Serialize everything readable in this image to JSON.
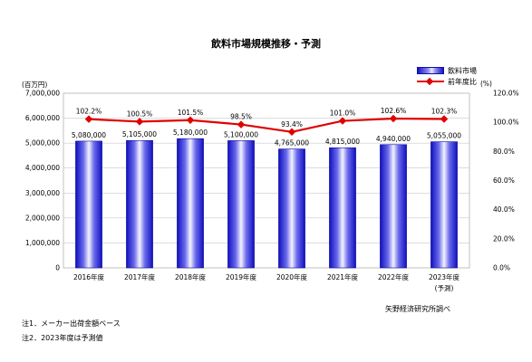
{
  "title": "飲料市場規模推移・予測",
  "unit_left": "(百万円)",
  "unit_right": "(%)",
  "source": "矢野経済研究所調べ",
  "notes": [
    "注1．メーカー出荷金額ベース",
    "注2．2023年度は予測値"
  ],
  "colors": {
    "bar": "#2a2ad8",
    "line": "#e00000"
  },
  "chart_data": {
    "type": "bar",
    "title": "飲料市場規模推移・予測",
    "categories": [
      "2016年度",
      "2017年度",
      "2018年度",
      "2019年度",
      "2020年度",
      "2021年度",
      "2022年度",
      "2023年度"
    ],
    "category_sublabels": [
      "",
      "",
      "",
      "",
      "",
      "",
      "",
      "(予測)"
    ],
    "series": [
      {
        "name": "飲料市場",
        "type": "bar",
        "axis": "left",
        "values": [
          5080000,
          5105000,
          5180000,
          5100000,
          4765000,
          4815000,
          4940000,
          5055000
        ],
        "labels": [
          "5,080,000",
          "5,105,000",
          "5,180,000",
          "5,100,000",
          "4,765,000",
          "4,815,000",
          "4,940,000",
          "5,055,000"
        ]
      },
      {
        "name": "前年度比",
        "type": "line",
        "axis": "right",
        "values": [
          102.2,
          100.5,
          101.5,
          98.5,
          93.4,
          101.0,
          102.6,
          102.3
        ],
        "labels": [
          "102.2%",
          "100.5%",
          "101.5%",
          "98.5%",
          "93.4%",
          "101.0%",
          "102.6%",
          "102.3%"
        ]
      }
    ],
    "y_left": {
      "label": "(百万円)",
      "ylim": [
        0,
        7000000
      ],
      "ticks": [
        "0",
        "1,000,000",
        "2,000,000",
        "3,000,000",
        "4,000,000",
        "5,000,000",
        "6,000,000",
        "7,000,000"
      ]
    },
    "y_right": {
      "label": "(%)",
      "ylim": [
        0,
        120
      ],
      "ticks": [
        "0.0%",
        "20.0%",
        "40.0%",
        "60.0%",
        "80.0%",
        "100.0%",
        "120.0%"
      ]
    },
    "grid": true,
    "legend": "top-right"
  }
}
